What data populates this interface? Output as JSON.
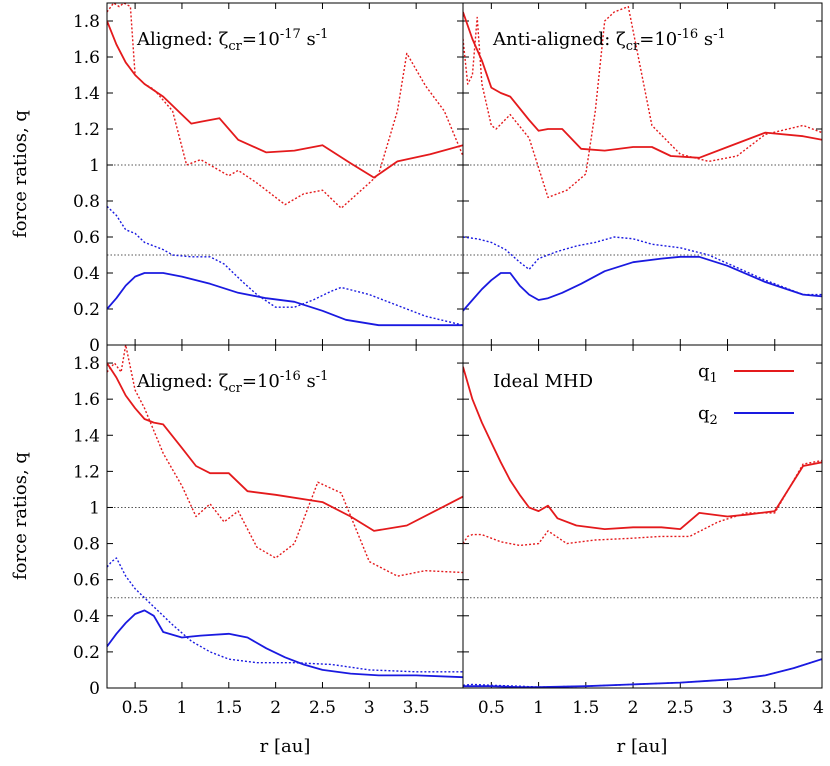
{
  "figure": {
    "x_axis_label": "r [au]",
    "y_axis_label": "force ratios, q",
    "legend": {
      "placement": "top-right of bottom-right panel",
      "entries": [
        {
          "label": "q",
          "subscript": "1",
          "color": "#e41a1c"
        },
        {
          "label": "q",
          "subscript": "2",
          "color": "#1a1ae0"
        }
      ]
    },
    "colors": {
      "q1": "#e41a1c",
      "q2": "#1a1ae0",
      "reference": "#555555"
    }
  },
  "chart_data": [
    {
      "type": "line",
      "title_parts": {
        "prefix": "Aligned: ζ",
        "sub": "cr",
        "mid": "=10",
        "sup": "-17",
        "unit": " s",
        "unit_sup": "-1"
      },
      "xlim": [
        0.2,
        4.0
      ],
      "ylim": [
        0,
        1.9
      ],
      "x_ticks": [],
      "y_ticks": [
        "0",
        "0.2",
        "0.4",
        "0.6",
        "0.8",
        "1",
        "1.2",
        "1.4",
        "1.6",
        "1.8"
      ],
      "reference_lines": [
        1.0,
        0.5
      ],
      "series": [
        {
          "key": "q1",
          "style": "solid",
          "color": "#e41a1c",
          "x": [
            0.2,
            0.3,
            0.4,
            0.5,
            0.6,
            0.8,
            1.0,
            1.1,
            1.2,
            1.4,
            1.6,
            1.9,
            2.2,
            2.5,
            2.8,
            3.05,
            3.3,
            3.65,
            4.0
          ],
          "y": [
            1.8,
            1.67,
            1.57,
            1.5,
            1.45,
            1.38,
            1.28,
            1.23,
            1.24,
            1.26,
            1.14,
            1.07,
            1.08,
            1.11,
            1.01,
            0.93,
            1.02,
            1.06,
            1.11
          ]
        },
        {
          "key": "q1_dotted",
          "style": "dotted",
          "color": "#e41a1c",
          "x": [
            0.2,
            0.27,
            0.33,
            0.38,
            0.45,
            0.5,
            0.6,
            0.7,
            0.9,
            1.05,
            1.2,
            1.4,
            1.5,
            1.6,
            1.8,
            2.1,
            2.3,
            2.5,
            2.7,
            3.0,
            3.1,
            3.3,
            3.4,
            3.6,
            3.8,
            4.0
          ],
          "y": [
            1.85,
            1.9,
            1.88,
            1.9,
            1.88,
            1.5,
            1.45,
            1.42,
            1.3,
            1.0,
            1.03,
            0.97,
            0.94,
            0.97,
            0.9,
            0.78,
            0.84,
            0.86,
            0.76,
            0.9,
            0.95,
            1.3,
            1.62,
            1.44,
            1.3,
            1.05
          ]
        },
        {
          "key": "q2",
          "style": "solid",
          "color": "#1a1ae0",
          "x": [
            0.2,
            0.3,
            0.4,
            0.5,
            0.6,
            0.8,
            1.0,
            1.3,
            1.6,
            1.9,
            2.2,
            2.5,
            2.75,
            3.1,
            3.5,
            4.0
          ],
          "y": [
            0.2,
            0.26,
            0.33,
            0.38,
            0.4,
            0.4,
            0.38,
            0.34,
            0.29,
            0.26,
            0.24,
            0.19,
            0.14,
            0.11,
            0.11,
            0.11
          ]
        },
        {
          "key": "q2_dotted",
          "style": "dotted",
          "color": "#1a1ae0",
          "x": [
            0.2,
            0.3,
            0.4,
            0.5,
            0.6,
            0.8,
            0.9,
            1.1,
            1.3,
            1.45,
            1.65,
            1.8,
            2.0,
            2.2,
            2.4,
            2.6,
            2.7,
            3.0,
            3.3,
            3.6,
            4.0
          ],
          "y": [
            0.77,
            0.72,
            0.64,
            0.62,
            0.57,
            0.53,
            0.5,
            0.49,
            0.49,
            0.45,
            0.35,
            0.28,
            0.21,
            0.21,
            0.25,
            0.3,
            0.32,
            0.28,
            0.22,
            0.16,
            0.11
          ]
        }
      ]
    },
    {
      "type": "line",
      "title_parts": {
        "prefix": "Anti-aligned: ζ",
        "sub": "cr",
        "mid": "=10",
        "sup": "-16",
        "unit": " s",
        "unit_sup": "-1"
      },
      "xlim": [
        0.2,
        4.0
      ],
      "ylim": [
        0,
        1.9
      ],
      "x_ticks": [],
      "y_ticks": [],
      "reference_lines": [
        1.0,
        0.5
      ],
      "series": [
        {
          "key": "q1",
          "style": "solid",
          "color": "#e41a1c",
          "x": [
            0.2,
            0.3,
            0.4,
            0.5,
            0.6,
            0.7,
            0.9,
            1.0,
            1.1,
            1.25,
            1.45,
            1.7,
            2.0,
            2.2,
            2.4,
            2.7,
            3.0,
            3.4,
            3.8,
            4.0
          ],
          "y": [
            1.85,
            1.7,
            1.58,
            1.43,
            1.4,
            1.38,
            1.25,
            1.19,
            1.2,
            1.2,
            1.09,
            1.08,
            1.1,
            1.1,
            1.05,
            1.04,
            1.1,
            1.18,
            1.16,
            1.14
          ]
        },
        {
          "key": "q1_dotted",
          "style": "dotted",
          "color": "#e41a1c",
          "x": [
            0.2,
            0.25,
            0.3,
            0.35,
            0.4,
            0.5,
            0.55,
            0.7,
            0.9,
            1.1,
            1.3,
            1.5,
            1.6,
            1.7,
            1.8,
            1.95,
            2.2,
            2.5,
            2.8,
            3.1,
            3.4,
            3.8,
            4.0
          ],
          "y": [
            1.7,
            1.45,
            1.5,
            1.82,
            1.45,
            1.22,
            1.2,
            1.28,
            1.15,
            0.82,
            0.86,
            0.95,
            1.3,
            1.8,
            1.85,
            1.88,
            1.22,
            1.06,
            1.02,
            1.05,
            1.17,
            1.22,
            1.18
          ]
        },
        {
          "key": "q2",
          "style": "solid",
          "color": "#1a1ae0",
          "x": [
            0.2,
            0.3,
            0.4,
            0.5,
            0.6,
            0.7,
            0.8,
            0.9,
            1.0,
            1.1,
            1.25,
            1.45,
            1.7,
            2.0,
            2.3,
            2.5,
            2.7,
            3.0,
            3.4,
            3.8,
            4.0
          ],
          "y": [
            0.19,
            0.25,
            0.31,
            0.36,
            0.4,
            0.4,
            0.33,
            0.28,
            0.25,
            0.26,
            0.29,
            0.34,
            0.41,
            0.46,
            0.48,
            0.49,
            0.49,
            0.44,
            0.35,
            0.28,
            0.27
          ]
        },
        {
          "key": "q2_dotted",
          "style": "dotted",
          "color": "#1a1ae0",
          "x": [
            0.2,
            0.35,
            0.5,
            0.65,
            0.8,
            0.9,
            1.0,
            1.2,
            1.4,
            1.6,
            1.8,
            2.0,
            2.2,
            2.5,
            2.8,
            3.1,
            3.4,
            3.8,
            4.0
          ],
          "y": [
            0.6,
            0.59,
            0.57,
            0.53,
            0.46,
            0.42,
            0.48,
            0.52,
            0.55,
            0.57,
            0.6,
            0.59,
            0.56,
            0.54,
            0.5,
            0.43,
            0.36,
            0.28,
            0.28
          ]
        }
      ]
    },
    {
      "type": "line",
      "title_parts": {
        "prefix": "Aligned: ζ",
        "sub": "cr",
        "mid": "=10",
        "sup": "-16",
        "unit": " s",
        "unit_sup": "-1"
      },
      "xlim": [
        0.2,
        4.0
      ],
      "ylim": [
        0,
        1.9
      ],
      "x_ticks": [
        "0.5",
        "1",
        "1.5",
        "2",
        "2.5",
        "3",
        "3.5"
      ],
      "y_ticks": [
        "0",
        "0.2",
        "0.4",
        "0.6",
        "0.8",
        "1",
        "1.2",
        "1.4",
        "1.6",
        "1.8"
      ],
      "reference_lines": [
        1.0,
        0.5
      ],
      "series": [
        {
          "key": "q1",
          "style": "solid",
          "color": "#e41a1c",
          "x": [
            0.2,
            0.3,
            0.4,
            0.5,
            0.6,
            0.7,
            0.8,
            1.0,
            1.15,
            1.3,
            1.5,
            1.7,
            2.0,
            2.5,
            2.8,
            3.05,
            3.4,
            3.7,
            4.0
          ],
          "y": [
            1.8,
            1.72,
            1.62,
            1.55,
            1.49,
            1.47,
            1.46,
            1.33,
            1.23,
            1.19,
            1.19,
            1.09,
            1.07,
            1.03,
            0.95,
            0.87,
            0.9,
            0.98,
            1.06
          ]
        },
        {
          "key": "q1_dotted",
          "style": "dotted",
          "color": "#e41a1c",
          "x": [
            0.2,
            0.28,
            0.35,
            0.4,
            0.5,
            0.6,
            0.8,
            1.0,
            1.15,
            1.3,
            1.45,
            1.6,
            1.8,
            2.0,
            2.2,
            2.45,
            2.7,
            3.0,
            3.3,
            3.6,
            4.0
          ],
          "y": [
            1.75,
            1.8,
            1.75,
            1.9,
            1.65,
            1.55,
            1.3,
            1.12,
            0.95,
            1.02,
            0.92,
            0.98,
            0.78,
            0.72,
            0.8,
            1.14,
            1.08,
            0.7,
            0.62,
            0.65,
            0.64
          ]
        },
        {
          "key": "q2",
          "style": "solid",
          "color": "#1a1ae0",
          "x": [
            0.2,
            0.3,
            0.4,
            0.5,
            0.6,
            0.7,
            0.8,
            1.0,
            1.2,
            1.5,
            1.7,
            1.9,
            2.1,
            2.3,
            2.5,
            2.8,
            3.1,
            3.5,
            4.0
          ],
          "y": [
            0.23,
            0.3,
            0.36,
            0.41,
            0.43,
            0.4,
            0.31,
            0.28,
            0.29,
            0.3,
            0.28,
            0.22,
            0.17,
            0.13,
            0.1,
            0.08,
            0.07,
            0.07,
            0.06
          ]
        },
        {
          "key": "q2_dotted",
          "style": "dotted",
          "color": "#1a1ae0",
          "x": [
            0.2,
            0.25,
            0.3,
            0.35,
            0.4,
            0.5,
            0.7,
            0.9,
            1.1,
            1.3,
            1.5,
            1.8,
            2.2,
            2.6,
            3.0,
            3.5,
            4.0
          ],
          "y": [
            0.67,
            0.7,
            0.72,
            0.67,
            0.62,
            0.55,
            0.45,
            0.35,
            0.26,
            0.2,
            0.16,
            0.14,
            0.14,
            0.13,
            0.1,
            0.09,
            0.09
          ]
        }
      ]
    },
    {
      "type": "line",
      "title_parts": {
        "prefix": "Ideal MHD",
        "sub": "",
        "mid": "",
        "sup": "",
        "unit": "",
        "unit_sup": ""
      },
      "xlim": [
        0.2,
        4.0
      ],
      "ylim": [
        0,
        1.9
      ],
      "x_ticks": [
        "0.5",
        "1",
        "1.5",
        "2",
        "2.5",
        "3",
        "3.5",
        "4"
      ],
      "y_ticks": [],
      "reference_lines": [
        1.0,
        0.5
      ],
      "series": [
        {
          "key": "q1",
          "style": "solid",
          "color": "#e41a1c",
          "x": [
            0.2,
            0.3,
            0.4,
            0.5,
            0.6,
            0.7,
            0.8,
            0.9,
            1.0,
            1.1,
            1.2,
            1.4,
            1.7,
            2.0,
            2.3,
            2.5,
            2.7,
            3.0,
            3.2,
            3.5,
            3.8,
            4.0
          ],
          "y": [
            1.78,
            1.6,
            1.47,
            1.36,
            1.25,
            1.15,
            1.07,
            1.0,
            0.98,
            1.01,
            0.94,
            0.9,
            0.88,
            0.89,
            0.89,
            0.88,
            0.97,
            0.95,
            0.96,
            0.98,
            1.23,
            1.25
          ]
        },
        {
          "key": "q1_dotted",
          "style": "dotted",
          "color": "#e41a1c",
          "x": [
            0.2,
            0.25,
            0.3,
            0.4,
            0.5,
            0.6,
            0.8,
            1.0,
            1.1,
            1.3,
            1.6,
            2.0,
            2.3,
            2.6,
            2.9,
            3.2,
            3.5,
            3.8,
            4.0
          ],
          "y": [
            0.8,
            0.84,
            0.85,
            0.85,
            0.83,
            0.81,
            0.79,
            0.8,
            0.87,
            0.8,
            0.82,
            0.83,
            0.84,
            0.84,
            0.92,
            0.97,
            0.97,
            1.24,
            1.26
          ]
        },
        {
          "key": "q2",
          "style": "solid",
          "color": "#1a1ae0",
          "x": [
            0.2,
            0.3,
            0.5,
            0.8,
            1.0,
            1.5,
            2.0,
            2.5,
            2.8,
            3.1,
            3.4,
            3.7,
            4.0
          ],
          "y": [
            0.01,
            0.01,
            0.01,
            0.005,
            0.005,
            0.01,
            0.02,
            0.03,
            0.04,
            0.05,
            0.07,
            0.11,
            0.16
          ]
        },
        {
          "key": "q2_dotted",
          "style": "dotted",
          "color": "#1a1ae0",
          "x": [
            0.2,
            0.3,
            0.5,
            0.8,
            1.0,
            1.5,
            2.0,
            2.5,
            2.8,
            3.1,
            3.4,
            3.7,
            4.0
          ],
          "y": [
            0.015,
            0.02,
            0.015,
            0.01,
            0.005,
            0.01,
            0.02,
            0.03,
            0.04,
            0.05,
            0.07,
            0.11,
            0.16
          ]
        }
      ]
    }
  ]
}
